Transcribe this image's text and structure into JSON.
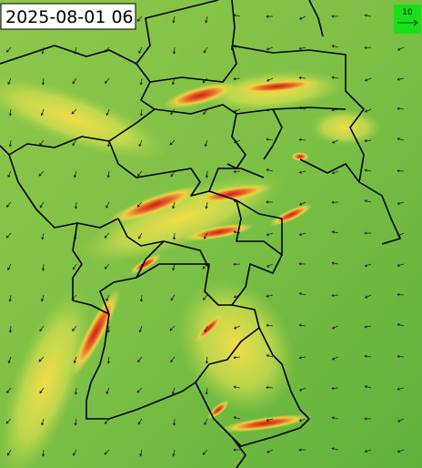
{
  "map": {
    "timestamp": "2025-08-01 06",
    "legend": {
      "label": "10"
    }
  }
}
